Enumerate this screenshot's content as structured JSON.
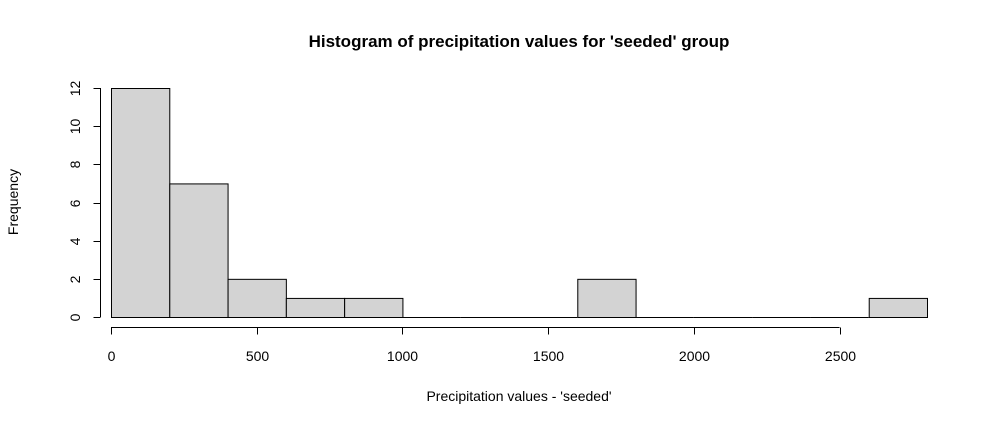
{
  "chart_data": {
    "type": "bar",
    "title": "Histogram of precipitation values for 'seeded' group",
    "xlabel": "Precipitation values - 'seeded'",
    "ylabel": "Frequency",
    "bin_edges": [
      0,
      200,
      400,
      600,
      800,
      1000,
      1200,
      1400,
      1600,
      1800,
      2000,
      2200,
      2400,
      2600,
      2800
    ],
    "values": [
      12,
      7,
      2,
      1,
      1,
      0,
      0,
      0,
      2,
      0,
      0,
      0,
      0,
      1
    ],
    "xlim": [
      0,
      2800
    ],
    "ylim": [
      0,
      12
    ],
    "x_ticks": [
      0,
      500,
      1000,
      1500,
      2000,
      2500
    ],
    "y_ticks": [
      0,
      2,
      4,
      6,
      8,
      10,
      12
    ],
    "grid": false,
    "bar_fill": "#d3d3d3",
    "bar_stroke": "#000000"
  }
}
